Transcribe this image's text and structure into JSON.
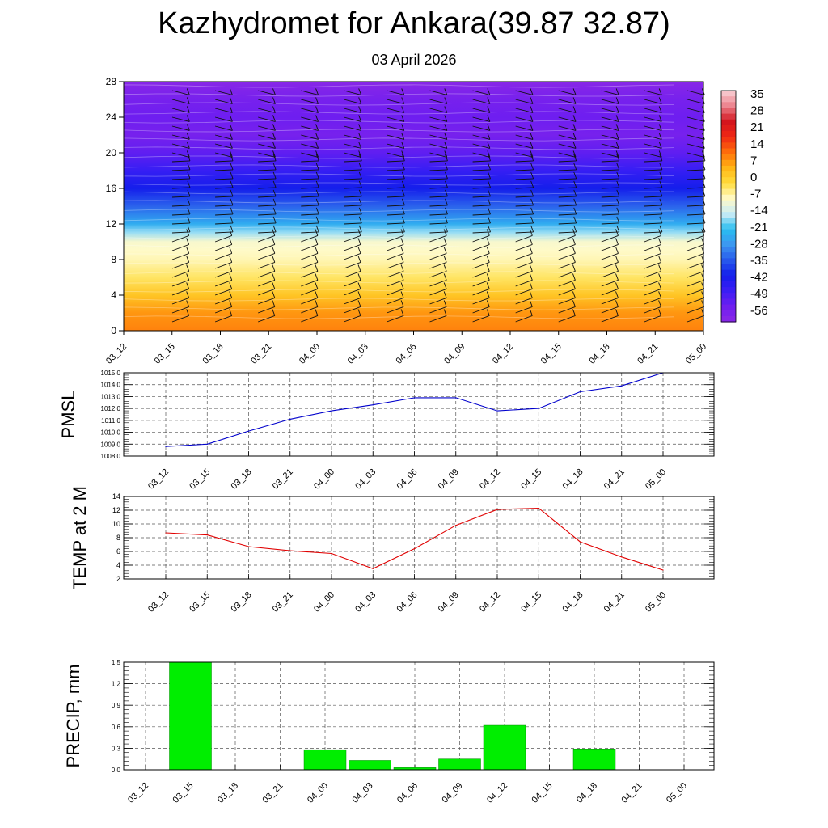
{
  "page": {
    "title": "Kazhydromet for Ankara(39.87 32.87)",
    "subtitle": "03 April 2026"
  },
  "colors": {
    "pmsl_line": "#0000cc",
    "temp_line": "#e00000",
    "precip_bar": "#00ee00",
    "precip_bar_edge": "#008800",
    "barb": "#111111"
  },
  "chart_data": [
    {
      "type": "heatmap",
      "name": "temperature-cross-section",
      "y_label": "",
      "x_labels": [
        "03_12",
        "03_15",
        "03_18",
        "03_21",
        "04_00",
        "04_03",
        "04_06",
        "04_09",
        "04_12",
        "04_15",
        "04_18",
        "04_21",
        "05_00"
      ],
      "y_ticks": [
        0,
        4,
        8,
        12,
        16,
        20,
        24,
        28
      ],
      "ylim": [
        0,
        28
      ],
      "colorbar_labels": [
        35,
        28,
        21,
        14,
        7,
        0,
        -7,
        -14,
        -21,
        -28,
        -35,
        -42,
        -49,
        -56
      ],
      "colorbar_range": [
        -63,
        42
      ],
      "level_temperature": [
        [
          0,
          12
        ],
        [
          2,
          10
        ],
        [
          4,
          4
        ],
        [
          6,
          -2
        ],
        [
          7,
          -4
        ],
        [
          8,
          -6
        ],
        [
          9,
          -7
        ],
        [
          10,
          -8
        ],
        [
          11,
          -16
        ],
        [
          12,
          -24
        ],
        [
          14,
          -34
        ],
        [
          16,
          -42
        ],
        [
          18,
          -48
        ],
        [
          20,
          -54
        ],
        [
          22,
          -58
        ],
        [
          24,
          -56
        ],
        [
          26,
          -58
        ],
        [
          28,
          -62
        ]
      ],
      "wind_barbs": "shown"
    },
    {
      "type": "line",
      "name": "pmsl",
      "ylabel": "PMSL",
      "categories": [
        "03_12",
        "03_15",
        "03_18",
        "03_21",
        "04_00",
        "04_03",
        "04_06",
        "04_09",
        "04_12",
        "04_15",
        "04_18",
        "04_21",
        "05_00"
      ],
      "values": [
        1008.8,
        1009.0,
        1010.1,
        1011.1,
        1011.8,
        1012.3,
        1012.9,
        1012.9,
        1011.8,
        1012.0,
        1013.4,
        1013.9,
        1015.0
      ],
      "ylim": [
        1008.0,
        1015.0
      ],
      "yticks": [
        "1008.0",
        "1009.0",
        "1010.0",
        "1011.0",
        "1012.0",
        "1013.0",
        "1014.0",
        "1015.0"
      ],
      "grid": true
    },
    {
      "type": "line",
      "name": "temp-2m",
      "ylabel": "TEMP at 2 M",
      "categories": [
        "03_12",
        "03_15",
        "03_18",
        "03_21",
        "04_00",
        "04_03",
        "04_06",
        "04_09",
        "04_12",
        "04_15",
        "04_18",
        "04_21",
        "05_00"
      ],
      "values": [
        8.7,
        8.4,
        6.7,
        6.1,
        5.7,
        3.5,
        6.4,
        9.8,
        12.1,
        12.3,
        7.4,
        5.2,
        3.3
      ],
      "ylim": [
        2,
        14
      ],
      "yticks": [
        "2",
        "4",
        "6",
        "8",
        "10",
        "12",
        "14"
      ],
      "grid": true
    },
    {
      "type": "bar",
      "name": "precip",
      "ylabel": "PRECIP, mm",
      "categories": [
        "03_12",
        "03_15",
        "03_18",
        "03_21",
        "04_00",
        "04_03",
        "04_06",
        "04_09",
        "04_12",
        "04_15",
        "04_18",
        "04_21",
        "05_00"
      ],
      "values": [
        0,
        1.5,
        0,
        0,
        0.28,
        0.13,
        0.03,
        0.15,
        0.62,
        0,
        0.29,
        0,
        0
      ],
      "ylim": [
        0,
        1.5
      ],
      "yticks": [
        "0.0",
        "0.3",
        "0.6",
        "0.9",
        "1.2",
        "1.5"
      ],
      "grid": true
    }
  ]
}
